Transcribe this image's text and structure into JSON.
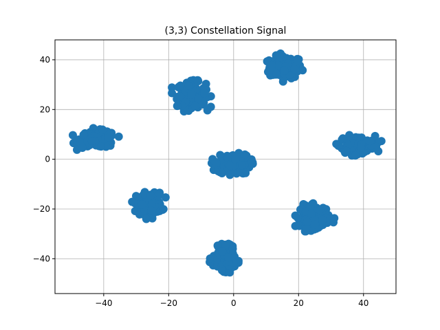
{
  "chart_data": {
    "type": "scatter",
    "title": "(3,3) Constellation Signal",
    "xlabel": "",
    "ylabel": "",
    "xlim": [
      -55,
      50
    ],
    "ylim": [
      -54,
      48
    ],
    "xticks": [
      -40,
      -20,
      0,
      20,
      40
    ],
    "yticks": [
      -40,
      -20,
      0,
      20,
      40
    ],
    "xtick_labels": [
      "−40",
      "−20",
      "0",
      "20",
      "40"
    ],
    "ytick_labels": [
      "−40",
      "−20",
      "0",
      "20",
      "40"
    ],
    "grid": true,
    "marker_color": "#1f77b4",
    "series": [
      {
        "clusters": [
          {
            "center": [
              16,
              37
            ],
            "spread": [
              4.5,
              4.0
            ],
            "n": 170
          },
          {
            "center": [
              -13,
              26
            ],
            "spread": [
              4.0,
              4.5
            ],
            "n": 160
          },
          {
            "center": [
              -42,
              8
            ],
            "spread": [
              5.0,
              3.0
            ],
            "n": 170
          },
          {
            "center": [
              38,
              6
            ],
            "spread": [
              5.0,
              3.0
            ],
            "n": 170
          },
          {
            "center": [
              0,
              -2
            ],
            "spread": [
              4.5,
              3.5
            ],
            "n": 170
          },
          {
            "center": [
              -26,
              -18
            ],
            "spread": [
              3.5,
              4.0
            ],
            "n": 170
          },
          {
            "center": [
              25,
              -23
            ],
            "spread": [
              4.0,
              4.0
            ],
            "n": 170
          },
          {
            "center": [
              -3,
              -40
            ],
            "spread": [
              3.0,
              4.0
            ],
            "n": 160
          }
        ]
      }
    ]
  }
}
